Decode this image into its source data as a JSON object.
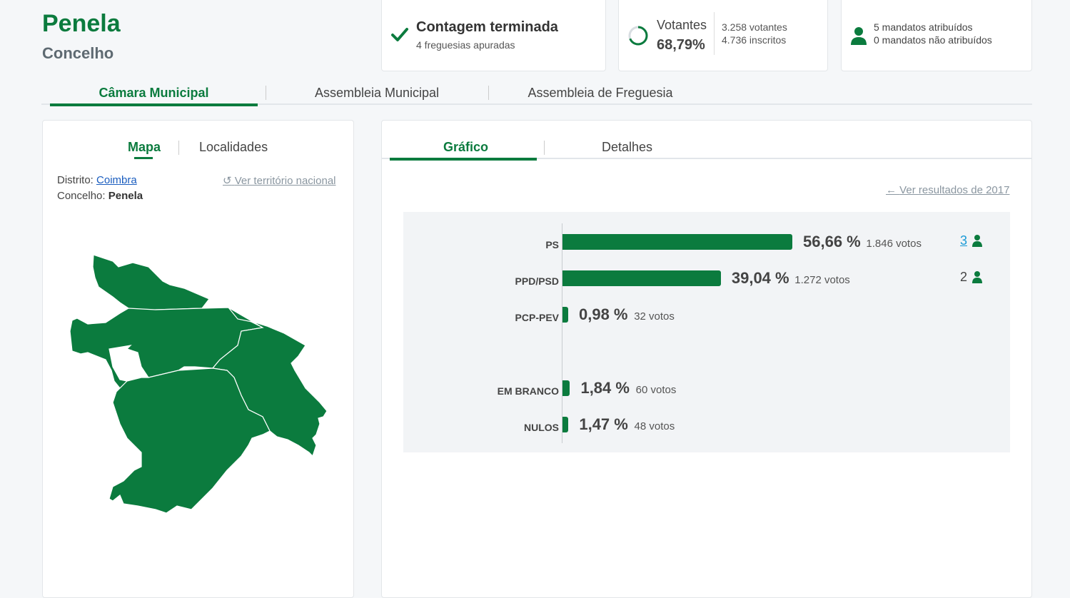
{
  "header": {
    "title": "Penela",
    "subtitle": "Concelho"
  },
  "cards": {
    "count": {
      "main": "Contagem terminada",
      "sub": "4 freguesias apuradas"
    },
    "turnout": {
      "label": "Votantes",
      "pct": "68,79%",
      "pct_value": 68.79,
      "voters": "3.258 votantes",
      "registered": "4.736 inscritos"
    },
    "seats": {
      "assigned": "5 mandatos atribuídos",
      "unassigned": "0 mandatos não atribuídos"
    }
  },
  "tabs": [
    "Câmara Municipal",
    "Assembleia Municipal",
    "Assembleia de Freguesia"
  ],
  "left": {
    "tabs": [
      "Mapa",
      "Localidades"
    ],
    "district_label": "Distrito:",
    "district": "Coimbra",
    "municipality_label": "Concelho:",
    "municipality": "Penela",
    "national_link": "Ver território nacional"
  },
  "right": {
    "tabs": [
      "Gráfico",
      "Detalhes"
    ],
    "prev_link": "Ver resultados de 2017"
  },
  "colors": {
    "accent": "#0b7b3e"
  },
  "chart_data": {
    "type": "bar",
    "orientation": "horizontal",
    "categories": [
      "PS",
      "PPD/PSD",
      "PCP-PEV",
      "EM BRANCO",
      "NULOS"
    ],
    "values": [
      56.66,
      39.04,
      0.98,
      1.84,
      1.47
    ],
    "pct_labels": [
      "56,66 %",
      "39,04 %",
      "0,98 %",
      "1,84 %",
      "1,47 %"
    ],
    "vote_labels": [
      "1.846 votos",
      "1.272 votos",
      "32 votos",
      "60 votos",
      "48 votos"
    ],
    "seats": [
      "3",
      "2",
      null,
      null,
      null
    ]
  }
}
